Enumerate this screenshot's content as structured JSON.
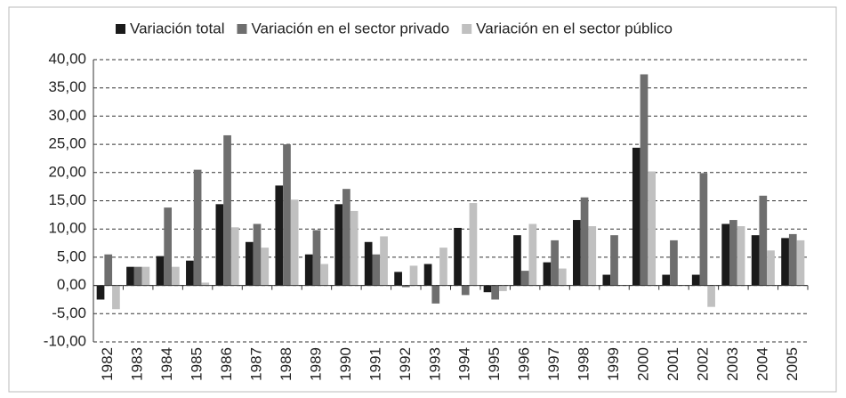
{
  "chart_data": {
    "type": "bar",
    "categories": [
      "1982",
      "1983",
      "1984",
      "1985",
      "1986",
      "1987",
      "1988",
      "1989",
      "1990",
      "1991",
      "1992",
      "1993",
      "1994",
      "1995",
      "1996",
      "1997",
      "1998",
      "1999",
      "2000",
      "2001",
      "2002",
      "2003",
      "2004",
      "2005"
    ],
    "series": [
      {
        "name": "Variación total",
        "color": "#1a1a1a",
        "values": [
          -2.5,
          3.3,
          5.2,
          4.4,
          14.4,
          7.7,
          17.7,
          5.5,
          14.4,
          7.7,
          2.4,
          3.8,
          10.2,
          -1.2,
          8.9,
          4.1,
          11.6,
          1.9,
          24.4,
          1.9,
          1.9,
          10.9,
          8.9,
          8.4
        ]
      },
      {
        "name": "Variación en el sector privado",
        "color": "#6e6e6e",
        "values": [
          5.5,
          3.3,
          13.8,
          20.5,
          26.6,
          10.9,
          25.0,
          9.8,
          17.1,
          5.5,
          -0.3,
          -3.2,
          -1.7,
          -2.5,
          2.6,
          8.0,
          15.6,
          8.9,
          37.4,
          8.0,
          19.9,
          11.6,
          15.9,
          9.1
        ]
      },
      {
        "name": "Variación en el sector público",
        "color": "#c0c0c0",
        "values": [
          -4.2,
          3.3,
          3.3,
          0.5,
          10.3,
          6.7,
          15.2,
          3.8,
          13.2,
          8.7,
          3.5,
          6.7,
          14.6,
          -1.0,
          10.9,
          3.0,
          10.5,
          0,
          20.2,
          0,
          -3.8,
          10.5,
          6.2,
          8.0
        ]
      }
    ],
    "ylim": [
      -10,
      40
    ],
    "yticks": [
      {
        "value": -10,
        "label": "-10,00"
      },
      {
        "value": -5,
        "label": "-5,00"
      },
      {
        "value": 0,
        "label": "0,00"
      },
      {
        "value": 5,
        "label": "5,00"
      },
      {
        "value": 10,
        "label": "10,00"
      },
      {
        "value": 15,
        "label": "15,00"
      },
      {
        "value": 20,
        "label": "20,00"
      },
      {
        "value": 25,
        "label": "25,00"
      },
      {
        "value": 30,
        "label": "30,00"
      },
      {
        "value": 35,
        "label": "35,00"
      },
      {
        "value": 40,
        "label": "40,00"
      }
    ],
    "grid": true,
    "legend": "top"
  }
}
